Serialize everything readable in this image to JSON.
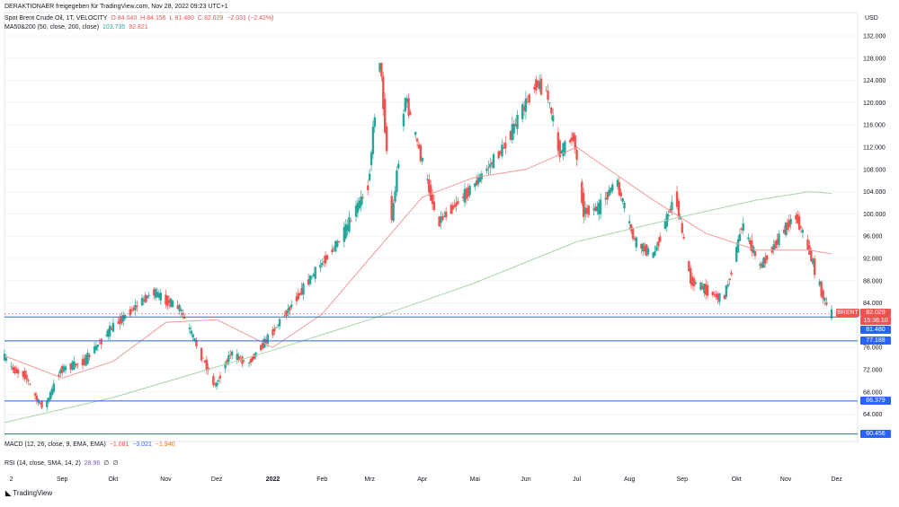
{
  "header": {
    "attribution": "DERAKTIONAER freigegeben für TradingView.com, Nov 28, 2022 09:23 UTC+1",
    "symbol_line": "Spot Brent Crude Oil, 1T, VELOCITY",
    "ohlc": {
      "o_label": "O",
      "o": "84.040",
      "h_label": "H",
      "h": "84.156",
      "l_label": "L",
      "l": "81.480",
      "c_label": "C",
      "c": "82.029",
      "change": "−2.031 (−2.42%)"
    },
    "ma_line": {
      "label": "MA50&200 (50, close, 200, close)",
      "v1": "103.735",
      "v2": "92.821"
    }
  },
  "indicators": {
    "macd": {
      "label": "MACD (12, 26, close, 9, EMA, EMA)",
      "v1": "−1.081",
      "v2": "−3.021",
      "v3": "−1.940"
    },
    "rsi": {
      "label": "RSI (14, close, SMA, 14, 2)",
      "v1": "28.96",
      "v2": "∅",
      "v3": "∅"
    }
  },
  "currency": "USD",
  "price_tags": {
    "brent_label": "BRENT",
    "brent_value": "82.029",
    "countdown": "15:36:10",
    "levels": [
      "81.480",
      "77.188",
      "66.379",
      "60.456"
    ]
  },
  "logo": "TradingView",
  "colors": {
    "up": "#26a69a",
    "down": "#ef5350",
    "ma50": "#ef9a9a",
    "ma200": "#a5d6a7",
    "level": "#2962ff",
    "tag": "#2962ff",
    "last": "#ef5350"
  },
  "chart_data": {
    "type": "candlestick",
    "title": "Spot Brent Crude Oil, 1T, VELOCITY",
    "ylabel": "USD",
    "ylim": [
      59,
      136
    ],
    "y_ticks": [
      132,
      128,
      124,
      120,
      116,
      112,
      108,
      104,
      100,
      96,
      92,
      88,
      84,
      76,
      72,
      68,
      64
    ],
    "x_tick_labels": [
      "2",
      "Sep",
      "Okt",
      "Nov",
      "Dez",
      "2022",
      "Feb",
      "Mrz",
      "Apr",
      "Mai",
      "Jun",
      "Jul",
      "Aug",
      "Sep",
      "Okt",
      "Nov",
      "Dez"
    ],
    "date_range": [
      "2021-07-29",
      "2022-11-28"
    ],
    "price_path": [
      [
        "2021-07-29",
        74.5
      ],
      [
        "2021-08-04",
        72.0
      ],
      [
        "2021-08-11",
        71.0
      ],
      [
        "2021-08-19",
        66.0
      ],
      [
        "2021-08-23",
        65.5
      ],
      [
        "2021-09-01",
        72.0
      ],
      [
        "2021-09-15",
        73.5
      ],
      [
        "2021-10-01",
        79.5
      ],
      [
        "2021-10-25",
        86.0
      ],
      [
        "2021-11-10",
        83.0
      ],
      [
        "2021-11-26",
        72.5
      ],
      [
        "2021-12-01",
        69.0
      ],
      [
        "2021-12-10",
        75.0
      ],
      [
        "2021-12-20",
        73.0
      ],
      [
        "2022-01-03",
        78.5
      ],
      [
        "2022-01-25",
        88.0
      ],
      [
        "2022-02-14",
        96.0
      ],
      [
        "2022-03-01",
        105.0
      ],
      [
        "2022-03-08",
        128.0
      ],
      [
        "2022-03-15",
        99.0
      ],
      [
        "2022-03-23",
        121.0
      ],
      [
        "2022-04-11",
        98.5
      ],
      [
        "2022-05-02",
        105.0
      ],
      [
        "2022-05-20",
        112.0
      ],
      [
        "2022-06-08",
        123.5
      ],
      [
        "2022-06-14",
        122.0
      ],
      [
        "2022-06-22",
        111.0
      ],
      [
        "2022-06-30",
        114.0
      ],
      [
        "2022-07-06",
        100.5
      ],
      [
        "2022-07-15",
        101.0
      ],
      [
        "2022-07-25",
        106.0
      ],
      [
        "2022-08-05",
        95.0
      ],
      [
        "2022-08-16",
        92.5
      ],
      [
        "2022-08-29",
        103.5
      ],
      [
        "2022-09-07",
        88.0
      ],
      [
        "2022-09-26",
        84.5
      ],
      [
        "2022-10-03",
        92.0
      ],
      [
        "2022-10-07",
        98.0
      ],
      [
        "2022-10-18",
        90.5
      ],
      [
        "2022-11-04",
        98.5
      ],
      [
        "2022-11-08",
        99.5
      ],
      [
        "2022-11-14",
        95.0
      ],
      [
        "2022-11-24",
        85.0
      ],
      [
        "2022-11-28",
        82.03
      ]
    ],
    "ma50": [
      [
        "2021-07-29",
        74.5
      ],
      [
        "2021-09-01",
        70.5
      ],
      [
        "2021-10-01",
        73.5
      ],
      [
        "2021-11-01",
        80.5
      ],
      [
        "2021-12-01",
        81.0
      ],
      [
        "2022-01-03",
        76.0
      ],
      [
        "2022-02-01",
        82.0
      ],
      [
        "2022-03-01",
        92.0
      ],
      [
        "2022-04-01",
        103.0
      ],
      [
        "2022-05-01",
        106.5
      ],
      [
        "2022-06-01",
        108.0
      ],
      [
        "2022-07-01",
        112.0
      ],
      [
        "2022-07-15",
        109.0
      ],
      [
        "2022-08-15",
        102.5
      ],
      [
        "2022-09-15",
        96.5
      ],
      [
        "2022-10-15",
        93.5
      ],
      [
        "2022-11-15",
        93.5
      ],
      [
        "2022-11-28",
        92.8
      ]
    ],
    "ma200": [
      [
        "2021-07-29",
        62.5
      ],
      [
        "2021-10-01",
        67.0
      ],
      [
        "2022-01-03",
        75.5
      ],
      [
        "2022-03-01",
        81.0
      ],
      [
        "2022-05-01",
        87.5
      ],
      [
        "2022-07-01",
        95.0
      ],
      [
        "2022-09-01",
        99.5
      ],
      [
        "2022-10-15",
        102.5
      ],
      [
        "2022-11-15",
        104.0
      ],
      [
        "2022-11-28",
        103.7
      ]
    ],
    "horizontal_levels": [
      81.48,
      77.188,
      66.379,
      60.456
    ],
    "last_price": 82.029
  }
}
